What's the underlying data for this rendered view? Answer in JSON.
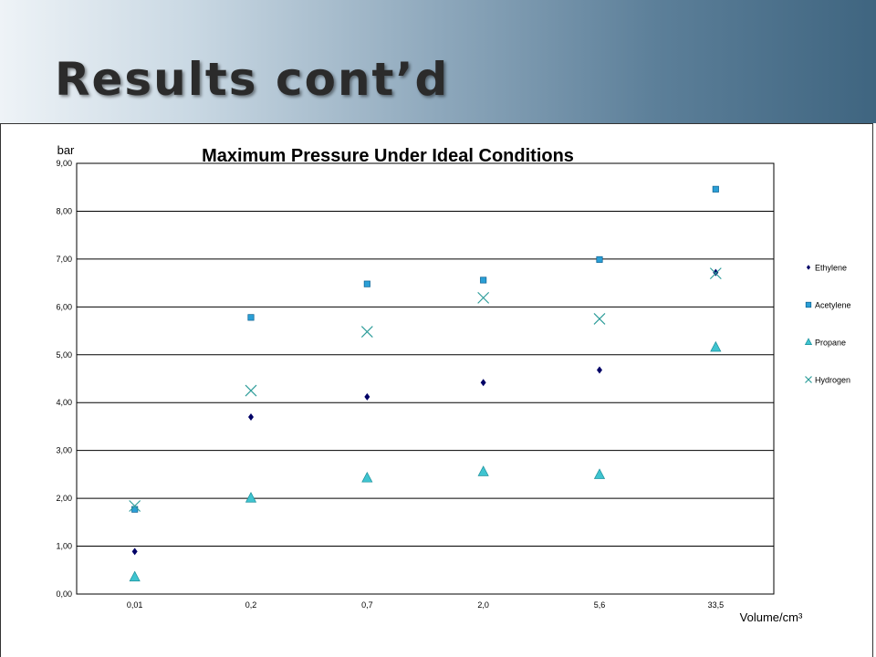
{
  "slide": {
    "title": "Results cont’d"
  },
  "chart_data": {
    "type": "scatter",
    "title": "Maximum Pressure Under Ideal Conditions",
    "ylabel": "bar",
    "xlabel": "Volume/cm³",
    "categories": [
      "0,01",
      "0,2",
      "0,7",
      "2,0",
      "5,6",
      "33,5"
    ],
    "ylim": [
      0,
      9
    ],
    "yticks": [
      "0,00",
      "1,00",
      "2,00",
      "3,00",
      "4,00",
      "5,00",
      "6,00",
      "7,00",
      "8,00",
      "9,00"
    ],
    "grid": "horizontal",
    "legend_position": "right",
    "series": [
      {
        "name": "Ethylene",
        "marker": "diamond",
        "color": "#000066",
        "values": [
          0.89,
          3.7,
          4.12,
          4.42,
          4.68,
          6.72
        ]
      },
      {
        "name": "Acetylene",
        "marker": "square",
        "color": "#2a9fd6",
        "values": [
          1.77,
          5.78,
          6.48,
          6.56,
          6.99,
          8.46
        ]
      },
      {
        "name": "Propane",
        "marker": "triangle",
        "color": "#3fc4d0",
        "values": [
          0.35,
          2.0,
          2.42,
          2.55,
          2.49,
          5.15
        ]
      },
      {
        "name": "Hydrogen",
        "marker": "x",
        "color": "#2e9d9a",
        "values": [
          1.84,
          4.25,
          5.48,
          6.19,
          5.75,
          6.7
        ]
      }
    ]
  }
}
